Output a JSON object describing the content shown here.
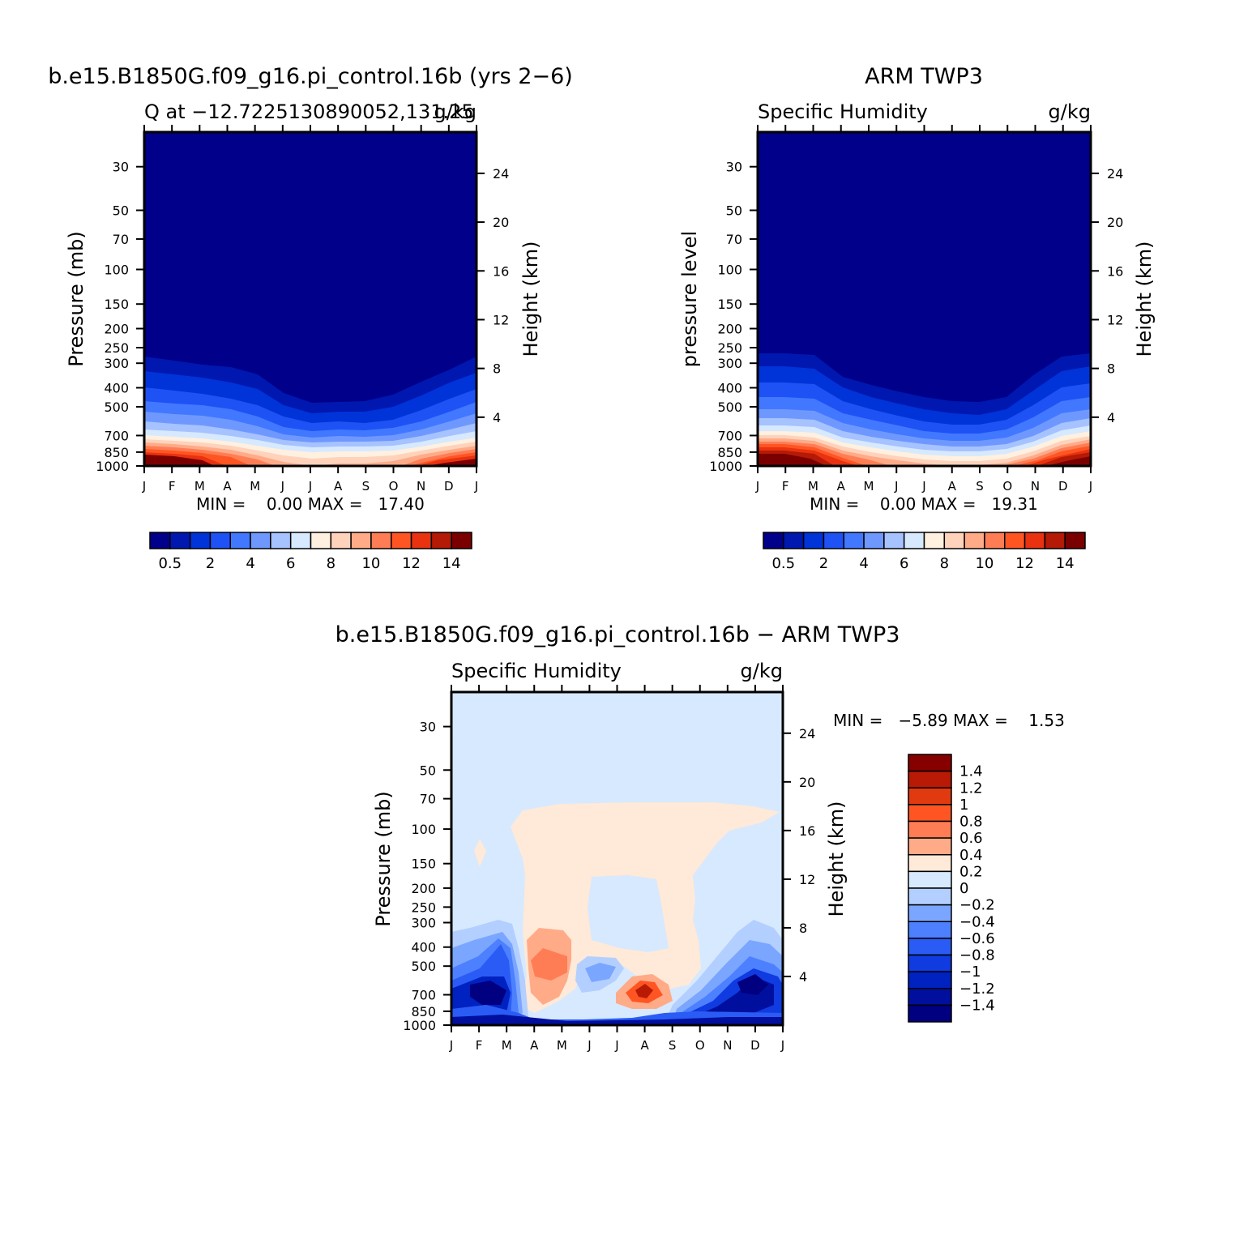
{
  "chart_data": [
    {
      "type": "heatmap",
      "title": "b.e15.B1850G.f09_g16.pi_control.16b (yrs 2−6)",
      "subtitle_left": "Q at −12.7225130890052,131.25",
      "subtitle_right": "g/kg",
      "ylabel": "Pressure (mb)",
      "ylabel_right": "Height (km)",
      "x_ticks": [
        "J",
        "F",
        "M",
        "A",
        "M",
        "J",
        "J",
        "A",
        "S",
        "O",
        "N",
        "D",
        "J"
      ],
      "y_ticks": [
        "30",
        "50",
        "70",
        "100",
        "150",
        "200",
        "250",
        "300",
        "400",
        "500",
        "700",
        "850",
        "1000"
      ],
      "y_values": [
        30,
        50,
        70,
        100,
        150,
        200,
        250,
        300,
        400,
        500,
        700,
        850,
        1000
      ],
      "ylim": [
        20,
        1000
      ],
      "y_scale": "log",
      "y_right_ticks": [
        "24",
        "20",
        "16",
        "12",
        "8",
        "4"
      ],
      "y_right_values": [
        24,
        20,
        16,
        12,
        8,
        4
      ],
      "stats": "MIN =    0.00 MAX =   17.40",
      "colorbar_labels": [
        "0.5",
        "2",
        "4",
        "6",
        "8",
        "10",
        "12",
        "14"
      ],
      "colorbar_colors": [
        "#00008a",
        "#0018b0",
        "#0033d8",
        "#1f52f5",
        "#4278ff",
        "#6f98ff",
        "#a6c2ff",
        "#d6e9ff",
        "#fff0e0",
        "#ffd2bb",
        "#ffab88",
        "#ff7d55",
        "#ff5522",
        "#e83210",
        "#b41a05",
        "#7a0000"
      ],
      "mean_profile": [
        0.05,
        0.05,
        0.05,
        0.05,
        0.05,
        0.05,
        0.1,
        0.3,
        1.2,
        2.8,
        6.5,
        11,
        15.5
      ]
    },
    {
      "type": "heatmap",
      "title": "ARM TWP3",
      "subtitle_left": "Specific Humidity",
      "subtitle_right": "g/kg",
      "ylabel": "pressure level",
      "ylabel_right": "Height (km)",
      "x_ticks": [
        "J",
        "F",
        "M",
        "A",
        "M",
        "J",
        "J",
        "A",
        "S",
        "O",
        "N",
        "D",
        "J"
      ],
      "y_ticks": [
        "30",
        "50",
        "70",
        "100",
        "150",
        "200",
        "250",
        "300",
        "400",
        "500",
        "700",
        "850",
        "1000"
      ],
      "y_values": [
        30,
        50,
        70,
        100,
        150,
        200,
        250,
        300,
        400,
        500,
        700,
        850,
        1000
      ],
      "ylim": [
        20,
        1000
      ],
      "y_scale": "log",
      "y_right_ticks": [
        "24",
        "20",
        "16",
        "12",
        "8",
        "4"
      ],
      "y_right_values": [
        24,
        20,
        16,
        12,
        8,
        4
      ],
      "stats": "MIN =    0.00 MAX =   19.31",
      "colorbar_labels": [
        "0.5",
        "2",
        "4",
        "6",
        "8",
        "10",
        "12",
        "14"
      ],
      "colorbar_colors": [
        "#00008a",
        "#0018b0",
        "#0033d8",
        "#1f52f5",
        "#4278ff",
        "#6f98ff",
        "#a6c2ff",
        "#d6e9ff",
        "#fff0e0",
        "#ffd2bb",
        "#ffab88",
        "#ff7d55",
        "#ff5522",
        "#e83210",
        "#b41a05",
        "#7a0000"
      ],
      "mean_profile": [
        0.05,
        0.05,
        0.05,
        0.05,
        0.05,
        0.05,
        0.1,
        0.4,
        1.4,
        3.1,
        7.0,
        12,
        16.5
      ]
    },
    {
      "type": "heatmap",
      "title": "b.e15.B1850G.f09_g16.pi_control.16b − ARM TWP3",
      "subtitle_left": "Specific Humidity",
      "subtitle_right": "g/kg",
      "ylabel": "Pressure (mb)",
      "ylabel_right": "Height (km)",
      "x_ticks": [
        "J",
        "F",
        "M",
        "A",
        "M",
        "J",
        "J",
        "A",
        "S",
        "O",
        "N",
        "D",
        "J"
      ],
      "y_ticks": [
        "30",
        "50",
        "70",
        "100",
        "150",
        "200",
        "250",
        "300",
        "400",
        "500",
        "700",
        "850",
        "1000"
      ],
      "y_values": [
        30,
        50,
        70,
        100,
        150,
        200,
        250,
        300,
        400,
        500,
        700,
        850,
        1000
      ],
      "ylim": [
        20,
        1000
      ],
      "y_scale": "log",
      "y_right_ticks": [
        "24",
        "20",
        "16",
        "12",
        "8",
        "4"
      ],
      "y_right_values": [
        24,
        20,
        16,
        12,
        8,
        4
      ],
      "stats": "MIN =   −5.89 MAX =    1.53",
      "colorbar_labels": [
        "1.4",
        "1.2",
        "1",
        "0.8",
        "0.6",
        "0.4",
        "0.2",
        "0",
        "−0.2",
        "−0.4",
        "−0.6",
        "−0.8",
        "−1",
        "−1.2",
        "−1.4"
      ],
      "colorbar_colors": [
        "#870000",
        "#b81a05",
        "#e23a10",
        "#ff5522",
        "#ff7d55",
        "#ffab88",
        "#ffe9d8",
        "#d6e9ff",
        "#b3cfff",
        "#7aa6ff",
        "#4d80ff",
        "#2a5cf5",
        "#0f3be0",
        "#0022c0",
        "#000f9e",
        "#000080"
      ]
    }
  ]
}
